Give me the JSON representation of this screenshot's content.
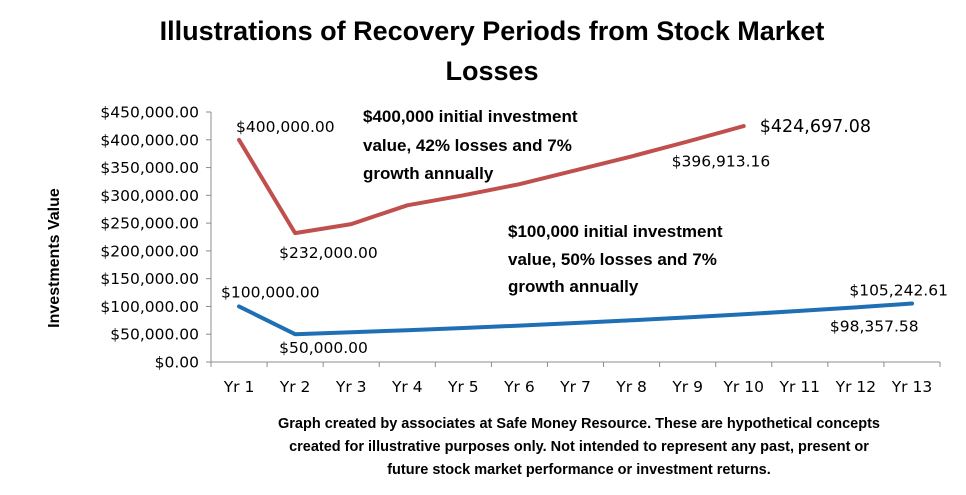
{
  "chart_data": {
    "type": "line",
    "title": [
      "Illustrations of Recovery Periods from Stock Market",
      "Losses"
    ],
    "ylabel": "Investments Value",
    "xlabel": "",
    "categories": [
      "Yr 1",
      "Yr 2",
      "Yr 3",
      "Yr 4",
      "Yr 5",
      "Yr 6",
      "Yr 7",
      "Yr 8",
      "Yr 9",
      "Yr 10",
      "Yr 11",
      "Yr 12",
      "Yr 13"
    ],
    "ylim": [
      0,
      450000
    ],
    "yticks": [
      0,
      50000,
      100000,
      150000,
      200000,
      250000,
      300000,
      350000,
      400000,
      450000
    ],
    "ytick_labels": [
      "$0.00",
      "$50,000.00",
      "$100,000.00",
      "$150,000.00",
      "$200,000.00",
      "$250,000.00",
      "$300,000.00",
      "$350,000.00",
      "$400,000.00",
      "$450,000.00"
    ],
    "grid": false,
    "series": [
      {
        "color": "#c0504d",
        "values": [
          400000,
          232000,
          248240,
          282000,
          300000,
          320000,
          345000,
          370000,
          396913.16,
          424697.08,
          null,
          null,
          null
        ],
        "point_labels": [
          {
            "index": 0,
            "text": "$400,000.00"
          },
          {
            "index": 1,
            "text": "$232,000.00"
          },
          {
            "index": 8,
            "text": "$396,913.16"
          },
          {
            "index": 9,
            "text": "$424,697.08"
          }
        ]
      },
      {
        "color": "#1f6fb5",
        "values": [
          100000,
          50000,
          53500,
          57245,
          61252.15,
          65539.8,
          70127.59,
          75036.52,
          80289.08,
          85909.31,
          91922.96,
          98357.58,
          105242.61
        ],
        "point_labels": [
          {
            "index": 0,
            "text": "$100,000.00"
          },
          {
            "index": 1,
            "text": "$50,000.00"
          },
          {
            "index": 11,
            "text": "$98,357.58"
          },
          {
            "index": 12,
            "text": "$105,242.61"
          }
        ]
      }
    ],
    "annotations": [
      {
        "color": "#c0504d",
        "lines": [
          "$400,000 initial investment",
          "value, 42% losses and 7%",
          "growth annually"
        ]
      },
      {
        "color": "#1f6fb5",
        "lines": [
          "$100,000 initial investment",
          "value, 50% losses and 7%",
          "growth annually"
        ]
      }
    ]
  },
  "footnote": [
    "Graph created by associates at Safe Money Resource. These are hypothetical concepts",
    "created for illustrative purposes only. Not intended to represent any past, present or",
    "future stock market performance or investment returns."
  ]
}
